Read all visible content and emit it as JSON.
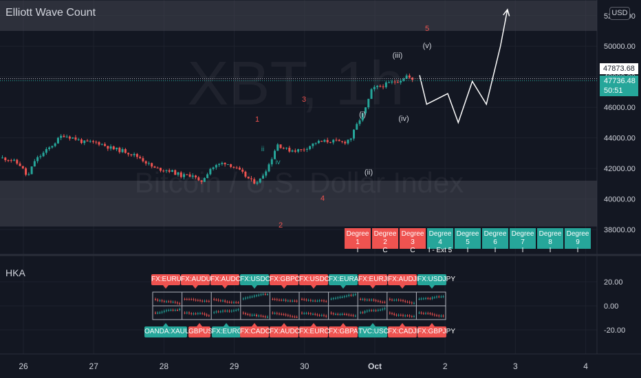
{
  "header": {
    "title": "Elliott Wave Count",
    "currency": "USD"
  },
  "watermark": {
    "symbol": "XBT, 1h",
    "name": "Bitcoin / U.S. Dollar Index"
  },
  "price_badges": {
    "high": "47873.68",
    "last": "47736.48",
    "countdown": "50:51"
  },
  "indicator": {
    "name": "HKA"
  },
  "colors": {
    "up": "#26a69a",
    "down": "#ef5350",
    "bg": "#131722",
    "grid": "#1e222d",
    "zone": "#434651"
  },
  "wave_labels": {
    "primary": [
      "1",
      "2",
      "3",
      "4",
      "5"
    ],
    "minor": [
      "(i)",
      "(ii)",
      "(iii)",
      "(iv)",
      "(v)"
    ],
    "sub": [
      "ii",
      "iv"
    ]
  },
  "degrees": [
    {
      "name": "Degree 1",
      "value": "I",
      "color": "#ef5350"
    },
    {
      "name": "Degree 2",
      "value": "C",
      "color": "#ef5350"
    },
    {
      "name": "Degree 3",
      "value": "C",
      "color": "#ef5350"
    },
    {
      "name": "Degree 4",
      "value": "I - Ext 5",
      "color": "#26a69a"
    },
    {
      "name": "Degree 5",
      "value": "I",
      "color": "#26a69a"
    },
    {
      "name": "Degree 6",
      "value": "I",
      "color": "#26a69a"
    },
    {
      "name": "Degree 7",
      "value": "I",
      "color": "#26a69a"
    },
    {
      "name": "Degree 8",
      "value": "I",
      "color": "#26a69a"
    },
    {
      "name": "Degree 9",
      "value": "I",
      "color": "#26a69a"
    }
  ],
  "pairs_top": [
    {
      "label": "FX:EURUSD",
      "color": "#ef5350"
    },
    {
      "label": "FX:AUDUSD",
      "color": "#ef5350"
    },
    {
      "label": "FX:AUDCHF",
      "color": "#ef5350"
    },
    {
      "label": "FX:USDCHF",
      "color": "#26a69a"
    },
    {
      "label": "FX:GBPCAD",
      "color": "#ef5350"
    },
    {
      "label": "FX:USDCAD",
      "color": "#ef5350"
    },
    {
      "label": "FX:EURAUD",
      "color": "#26a69a"
    },
    {
      "label": "FX:EURJPY",
      "color": "#ef5350"
    },
    {
      "label": "FX:AUDJPY",
      "color": "#ef5350"
    },
    {
      "label": "FX:USDJPY",
      "color": "#26a69a"
    }
  ],
  "pairs_bottom": [
    {
      "label": "OANDA:XAUUSD",
      "color": "#26a69a"
    },
    {
      "label": "GBPUSD",
      "color": "#ef5350"
    },
    {
      "label": "FX:EURGBP",
      "color": "#26a69a"
    },
    {
      "label": "FX:CADCHF",
      "color": "#ef5350"
    },
    {
      "label": "FX:AUDCAD",
      "color": "#ef5350"
    },
    {
      "label": "FX:EURCAD",
      "color": "#ef5350"
    },
    {
      "label": "FX:GBPAUD",
      "color": "#ef5350"
    },
    {
      "label": "TVC:USOIL",
      "color": "#26a69a"
    },
    {
      "label": "FX:CADJPY",
      "color": "#ef5350"
    },
    {
      "label": "FX:GBPJPY",
      "color": "#ef5350"
    }
  ],
  "chart_data": [
    {
      "type": "line",
      "title": "Elliott Wave Count",
      "x_ticks": [
        "26",
        "27",
        "28",
        "29",
        "30",
        "Oct",
        "2",
        "3",
        "4"
      ],
      "y_ticks": [
        "38000.00",
        "40000.00",
        "42000.00",
        "44000.00",
        "46000.00",
        "48000.00",
        "50000.00",
        "52000.00"
      ],
      "ylim": [
        37000,
        53000
      ],
      "zones": [
        {
          "from": 51000,
          "to": 53000
        },
        {
          "from": 38200,
          "to": 41200
        }
      ],
      "price_path": [
        [
          0.0,
          42700
        ],
        [
          0.15,
          42600
        ],
        [
          0.3,
          42200
        ],
        [
          0.4,
          41400
        ],
        [
          0.5,
          42500
        ],
        [
          0.7,
          43300
        ],
        [
          0.9,
          44200
        ],
        [
          1.05,
          44000
        ],
        [
          1.2,
          43700
        ],
        [
          1.4,
          43700
        ],
        [
          1.6,
          43300
        ],
        [
          1.8,
          43100
        ],
        [
          2.0,
          42700
        ],
        [
          2.2,
          42000
        ],
        [
          2.4,
          41900
        ],
        [
          2.6,
          41500
        ],
        [
          2.75,
          41600
        ],
        [
          2.85,
          41000
        ],
        [
          3.0,
          42000
        ],
        [
          3.2,
          42400
        ],
        [
          3.3,
          42200
        ],
        [
          3.45,
          41700
        ],
        [
          3.6,
          41100
        ],
        [
          3.7,
          41200
        ],
        [
          3.85,
          42400
        ],
        [
          3.95,
          43600
        ],
        [
          4.1,
          43200
        ],
        [
          4.3,
          43200
        ],
        [
          4.5,
          43700
        ],
        [
          4.7,
          43800
        ],
        [
          4.9,
          43700
        ],
        [
          5.0,
          44000
        ],
        [
          5.1,
          45000
        ],
        [
          5.2,
          45800
        ],
        [
          5.3,
          47200
        ],
        [
          5.5,
          47500
        ],
        [
          5.7,
          47800
        ],
        [
          5.8,
          48100
        ],
        [
          5.87,
          47736
        ]
      ],
      "projection": [
        [
          5.95,
          48100
        ],
        [
          6.05,
          46200
        ],
        [
          6.35,
          46900
        ],
        [
          6.5,
          45000
        ],
        [
          6.7,
          47700
        ],
        [
          6.9,
          46200
        ],
        [
          7.1,
          50000
        ],
        [
          7.2,
          52400
        ]
      ]
    },
    {
      "type": "line",
      "title": "HKA",
      "y_ticks": [
        "20.00",
        "0.00",
        "-20.00"
      ],
      "ylim": [
        -35,
        30
      ]
    }
  ]
}
